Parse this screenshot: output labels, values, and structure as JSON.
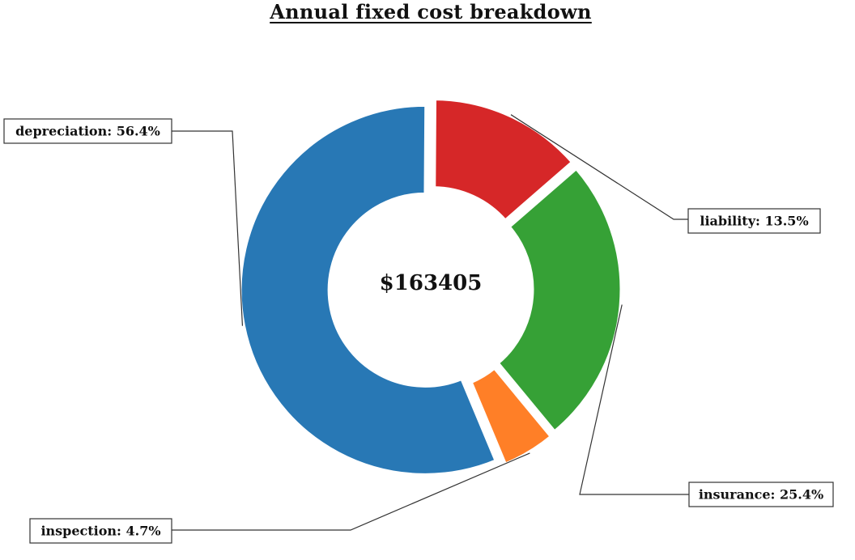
{
  "chart_data": {
    "type": "pie",
    "variant": "donut",
    "title": "Annual fixed cost breakdown",
    "center_label": "$163405",
    "total": 163405,
    "slices": [
      {
        "name": "liability",
        "percent": 13.5,
        "label": "liability: 13.5%",
        "color": "#d62728"
      },
      {
        "name": "depreciation",
        "percent": 56.4,
        "label": "depreciation: 56.4%",
        "color": "#2878b5"
      },
      {
        "name": "inspection",
        "percent": 4.7,
        "label": "inspection: 4.7%",
        "color": "#ff7f27"
      },
      {
        "name": "insurance",
        "percent": 25.4,
        "label": "insurance: 25.4%",
        "color": "#36a136"
      }
    ],
    "legend": "none",
    "grid": false
  }
}
